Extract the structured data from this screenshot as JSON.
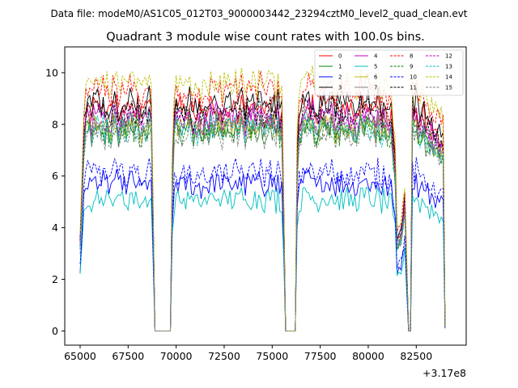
{
  "header": {
    "suptitle": "Data file: modeM0/AS1C05_012T03_9000003442_23294cztM0_level2_quad_clean.evt"
  },
  "chart_data": {
    "type": "line",
    "title": "Quadrant 3 module wise count rates with 100.0s bins.",
    "xlabel": "",
    "ylabel": "",
    "x_offset_label": "+3.17e8",
    "xlim": [
      64200,
      85100
    ],
    "ylim": [
      -0.55,
      11.0
    ],
    "x_ticks": [
      65000,
      67500,
      70000,
      72500,
      75000,
      77500,
      80000,
      82500
    ],
    "x_tick_labels": [
      "65000",
      "67500",
      "70000",
      "72500",
      "75000",
      "77500",
      "80000",
      "82500"
    ],
    "y_ticks": [
      0,
      2,
      4,
      6,
      8,
      10
    ],
    "y_tick_labels": [
      "0",
      "2",
      "4",
      "6",
      "8",
      "10"
    ],
    "grid": false,
    "legend_position": "top-right",
    "profile_x": [
      65000,
      65200,
      65400,
      68700,
      68800,
      68900,
      69000,
      69700,
      69800,
      69900,
      75500,
      75600,
      75700,
      76200,
      76300,
      76400,
      81200,
      81400,
      81500,
      81700,
      81900,
      82000,
      82100,
      82200,
      82300,
      82500,
      83900,
      84000
    ],
    "profile_shape": [
      0.4,
      0.9,
      1.0,
      1.0,
      0.5,
      0.0,
      0.0,
      0.0,
      0.7,
      1.0,
      1.0,
      0.55,
      0.0,
      0.0,
      0.8,
      1.0,
      1.0,
      0.75,
      0.4,
      0.45,
      0.6,
      0.3,
      0.0,
      0.0,
      1.0,
      1.0,
      0.85,
      0.02
    ],
    "series": [
      {
        "name": "0",
        "color": "#ff0000",
        "dash": "solid",
        "level": 8.6
      },
      {
        "name": "1",
        "color": "#008000",
        "dash": "solid",
        "level": 7.8
      },
      {
        "name": "2",
        "color": "#0000ff",
        "dash": "solid",
        "level": 5.7
      },
      {
        "name": "3",
        "color": "#000000",
        "dash": "solid",
        "level": 8.8
      },
      {
        "name": "4",
        "color": "#c000c0",
        "dash": "solid",
        "level": 8.3
      },
      {
        "name": "5",
        "color": "#00bfbf",
        "dash": "solid",
        "level": 5.1
      },
      {
        "name": "6",
        "color": "#bfbf00",
        "dash": "solid",
        "level": 7.9
      },
      {
        "name": "7",
        "color": "#808080",
        "dash": "solid",
        "level": 8.0
      },
      {
        "name": "8",
        "color": "#ff0000",
        "dash": "dashed",
        "level": 9.3
      },
      {
        "name": "9",
        "color": "#008000",
        "dash": "dashed",
        "level": 7.7
      },
      {
        "name": "10",
        "color": "#0000ff",
        "dash": "dashed",
        "level": 6.1
      },
      {
        "name": "11",
        "color": "#000000",
        "dash": "dashed",
        "level": 8.4
      },
      {
        "name": "12",
        "color": "#c000c0",
        "dash": "dashed",
        "level": 8.1
      },
      {
        "name": "13",
        "color": "#00bfbf",
        "dash": "dashed",
        "level": 7.8
      },
      {
        "name": "14",
        "color": "#bfbf00",
        "dash": "dashed",
        "level": 9.6
      },
      {
        "name": "15",
        "color": "#808080",
        "dash": "dashed",
        "level": 7.6
      }
    ]
  }
}
